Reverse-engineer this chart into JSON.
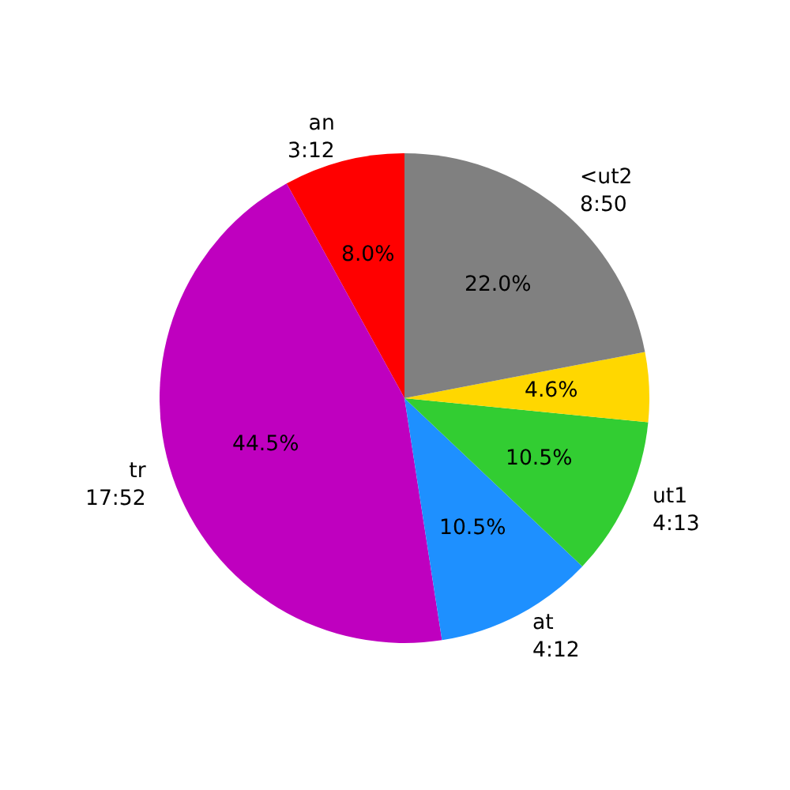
{
  "chart_data": {
    "type": "pie",
    "categories": [
      "an\n3:12",
      "tr\n17:52",
      "at\n4:12",
      "ut1\n4:13",
      null,
      "<ut2\n8:50"
    ],
    "values": [
      8.0,
      44.5,
      10.5,
      10.5,
      4.6,
      22.0
    ],
    "colors": [
      "#ff0000",
      "#bf00bf",
      "#1e90ff",
      "#32cd32",
      "#ffd700",
      "#808080"
    ],
    "value_labels": [
      "8.0%",
      "44.5%",
      "10.5%",
      "10.5%",
      "4.6%",
      "22.0%"
    ],
    "legend": false
  }
}
